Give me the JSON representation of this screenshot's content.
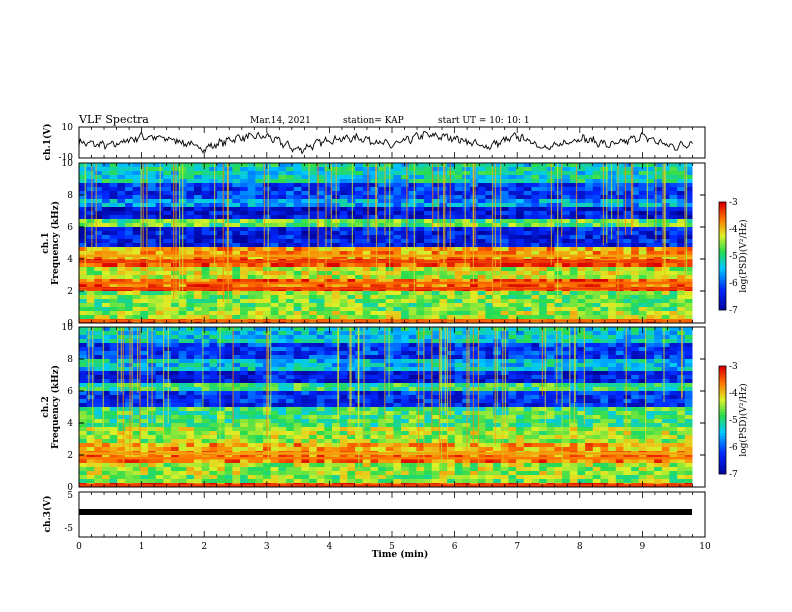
{
  "header": {
    "title": "VLF Spectra",
    "date": "Mar.14, 2021",
    "station": "station= KAP",
    "start_ut": "start  UT =   10: 10: 1"
  },
  "chart_data": [
    {
      "type": "line",
      "panel": "ch1-waveform",
      "ylabel": "ch.1(V)",
      "ylim": [
        -10,
        10
      ],
      "y_tick_labels": [
        "10",
        "-10"
      ],
      "x": [
        0,
        0.5,
        1,
        1.5,
        2,
        2.5,
        3,
        3.5,
        4,
        4.5,
        5,
        5.5,
        6,
        6.5,
        7,
        7.5,
        8,
        8.5,
        9,
        9.5,
        9.8
      ],
      "y": [
        0,
        -2,
        4,
        2,
        -4,
        3,
        4,
        -5,
        2,
        3,
        -2,
        5,
        3,
        -3,
        4,
        -4,
        3,
        -2,
        4,
        -3,
        0
      ]
    },
    {
      "type": "heatmap",
      "panel": "ch1-spectrogram",
      "ylabel": "ch.1\nFrequency (kHz)",
      "ylim": [
        0,
        10
      ],
      "y_tick_labels": [
        "0",
        "2",
        "4",
        "6",
        "8",
        "10"
      ],
      "colorbar": {
        "label": "log(PSD)(V²/Hz)",
        "range": [
          -7,
          -3
        ],
        "tick_labels": [
          "-3",
          "-4",
          "-5",
          "-6",
          "-7"
        ]
      },
      "bands": [
        {
          "f": 0.15,
          "level": -3.5
        },
        {
          "f": 0.4,
          "level": -4.4
        },
        {
          "f": 1.25,
          "level": -4.6
        },
        {
          "f": 1.75,
          "level": -4.5
        },
        {
          "f": 2.15,
          "level": -3.3
        },
        {
          "f": 2.5,
          "level": -3.5
        },
        {
          "f": 3.0,
          "level": -4.3
        },
        {
          "f": 3.85,
          "level": -3.3
        },
        {
          "f": 4.2,
          "level": -3.8
        },
        {
          "f": 5.5,
          "level": -6.4
        },
        {
          "f": 6.3,
          "level": -4.7
        },
        {
          "f": 6.8,
          "level": -6.5
        },
        {
          "f": 7.5,
          "level": -5.6
        },
        {
          "f": 8.2,
          "level": -6.2
        },
        {
          "f": 9.5,
          "level": -5.2
        }
      ]
    },
    {
      "type": "heatmap",
      "panel": "ch2-spectrogram",
      "ylabel": "ch.2\nFrequency (kHz)",
      "ylim": [
        0,
        10
      ],
      "y_tick_labels": [
        "0",
        "2",
        "4",
        "6",
        "8",
        "10"
      ],
      "colorbar": {
        "label": "log(PSD)(V²/Hz)",
        "range": [
          -7,
          -3
        ],
        "tick_labels": [
          "-3",
          "-4",
          "-5",
          "-6",
          "-7"
        ]
      },
      "bands": [
        {
          "f": 0.1,
          "level": -3.3
        },
        {
          "f": 0.5,
          "level": -4.5
        },
        {
          "f": 1.1,
          "level": -4.4
        },
        {
          "f": 1.8,
          "level": -3.6
        },
        {
          "f": 2.1,
          "level": -3.8
        },
        {
          "f": 3.3,
          "level": -4.4
        },
        {
          "f": 4.2,
          "level": -4.8
        },
        {
          "f": 5.8,
          "level": -6.3
        },
        {
          "f": 6.2,
          "level": -4.9
        },
        {
          "f": 6.6,
          "level": -6.4
        },
        {
          "f": 7.8,
          "level": -5.4
        },
        {
          "f": 8.4,
          "level": -6.2
        },
        {
          "f": 9.4,
          "level": -5.3
        }
      ]
    },
    {
      "type": "line",
      "panel": "ch3-waveform",
      "ylabel": "ch.3(V)",
      "ylim": [
        -5,
        5
      ],
      "y_tick_labels": [
        "5",
        "-5"
      ],
      "x": [
        0,
        9.8
      ],
      "y": [
        -1,
        -1
      ]
    }
  ],
  "xaxis": {
    "label": "Time (min)",
    "range": [
      0,
      10
    ],
    "tick_labels": [
      "0",
      "1",
      "2",
      "3",
      "4",
      "5",
      "6",
      "7",
      "8",
      "9",
      "10"
    ]
  },
  "colors": {
    "low": "#0000b4",
    "mid": "#33dd55",
    "high": "#e80000"
  }
}
